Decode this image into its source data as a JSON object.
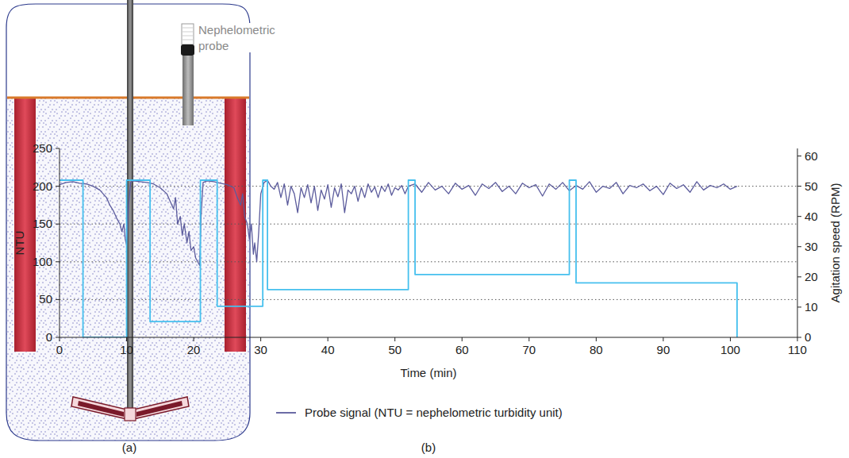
{
  "panel_labels": [
    "(a)",
    "(b)"
  ],
  "diagram": {
    "probe_label": "Nephelometric probe"
  },
  "chart_data": {
    "type": "line",
    "x_label": "Time (min)",
    "y_label": "NTU",
    "y2_label": "Agitation speed (RPM)",
    "xlim": [
      0,
      110
    ],
    "xticks": [
      0,
      10,
      20,
      30,
      40,
      50,
      60,
      70,
      80,
      90,
      100,
      110
    ],
    "ylim": [
      0,
      250
    ],
    "yticks": [
      0,
      50,
      100,
      150,
      200,
      250
    ],
    "y2lim": [
      0,
      62.5
    ],
    "y2ticks": [
      0,
      10,
      20,
      30,
      40,
      50,
      60
    ],
    "grid": true,
    "legend": "bottom",
    "series": [
      {
        "name": "Probe signal (NTU = nephelometric turbidity unit)",
        "color": "#5b5b9c",
        "line_style": "solid",
        "x": [
          0,
          1,
          2,
          3,
          4,
          5,
          6,
          7,
          7.5,
          8,
          8.5,
          9,
          9.3,
          9.6,
          9.8,
          10,
          10.3,
          10.6,
          11,
          12,
          13,
          14,
          15,
          16,
          16.5,
          17,
          17.3,
          17.6,
          18,
          18.3,
          18.6,
          19,
          19.3,
          19.6,
          20,
          20.3,
          20.6,
          20.9,
          21.1,
          21.4,
          22,
          23,
          24,
          25,
          26,
          26.5,
          27,
          27.3,
          27.6,
          28,
          28.3,
          28.6,
          28.9,
          29.1,
          29.4,
          29.7,
          30,
          30.5,
          31,
          31.5,
          32,
          32.5,
          33,
          33.5,
          34,
          34.5,
          35,
          35.5,
          36,
          36.5,
          37,
          37.5,
          38,
          38.5,
          39,
          39.5,
          40,
          40.5,
          41,
          41.5,
          42,
          42.5,
          43,
          43.5,
          44,
          44.5,
          45,
          45.5,
          46,
          46.5,
          47,
          47.5,
          48,
          48.5,
          49,
          49.5,
          50,
          50.5,
          51,
          51.5,
          52,
          53,
          54,
          55,
          56,
          57,
          58,
          59,
          60,
          61,
          62,
          63,
          64,
          65,
          66,
          67,
          68,
          69,
          70,
          71,
          72,
          73,
          74,
          75,
          76,
          77,
          78,
          79,
          80,
          81,
          82,
          83,
          84,
          85,
          86,
          87,
          88,
          89,
          90,
          91,
          92,
          93,
          94,
          95,
          96,
          97,
          98,
          99,
          100,
          101
        ],
        "values": [
          202,
          205,
          206,
          204,
          203,
          200,
          195,
          185,
          175,
          168,
          158,
          150,
          140,
          150,
          130,
          122,
          175,
          205,
          207,
          206,
          205,
          203,
          198,
          190,
          180,
          170,
          185,
          150,
          160,
          135,
          150,
          125,
          140,
          115,
          120,
          105,
          100,
          95,
          160,
          205,
          207,
          206,
          204,
          202,
          198,
          185,
          175,
          190,
          160,
          150,
          130,
          150,
          110,
          125,
          100,
          140,
          190,
          205,
          208,
          200,
          196,
          205,
          185,
          203,
          175,
          200,
          190,
          165,
          198,
          185,
          202,
          178,
          200,
          168,
          195,
          183,
          202,
          172,
          198,
          186,
          203,
          165,
          195,
          190,
          200,
          180,
          198,
          185,
          203,
          192,
          199,
          185,
          200,
          193,
          203,
          188,
          198,
          195,
          201,
          190,
          200,
          203,
          192,
          205,
          195,
          200,
          190,
          204,
          196,
          201,
          188,
          203,
          197,
          205,
          193,
          200,
          190,
          204,
          198,
          202,
          187,
          203,
          196,
          205,
          194,
          201,
          196,
          206,
          192,
          200,
          197,
          205,
          190,
          201,
          198,
          203,
          194,
          200,
          189,
          204,
          197,
          202,
          192,
          206,
          195,
          201,
          198,
          203,
          196,
          200
        ]
      },
      {
        "color": "#46c0ee",
        "axis": "y2",
        "line_style": "solid",
        "x": [
          0,
          3.5,
          3.5,
          10,
          10,
          13.5,
          13.5,
          21,
          21,
          23.5,
          23.5,
          30.3,
          30.3,
          31,
          31,
          52,
          52,
          53,
          53,
          76,
          76,
          77,
          77,
          101,
          101
        ],
        "values": [
          52,
          52,
          0,
          0,
          52,
          52,
          5.2,
          5.2,
          52,
          52,
          10.3,
          10.3,
          52,
          52,
          15.8,
          15.8,
          52,
          52,
          20.8,
          20.8,
          52,
          52,
          18,
          18,
          0
        ]
      }
    ]
  }
}
